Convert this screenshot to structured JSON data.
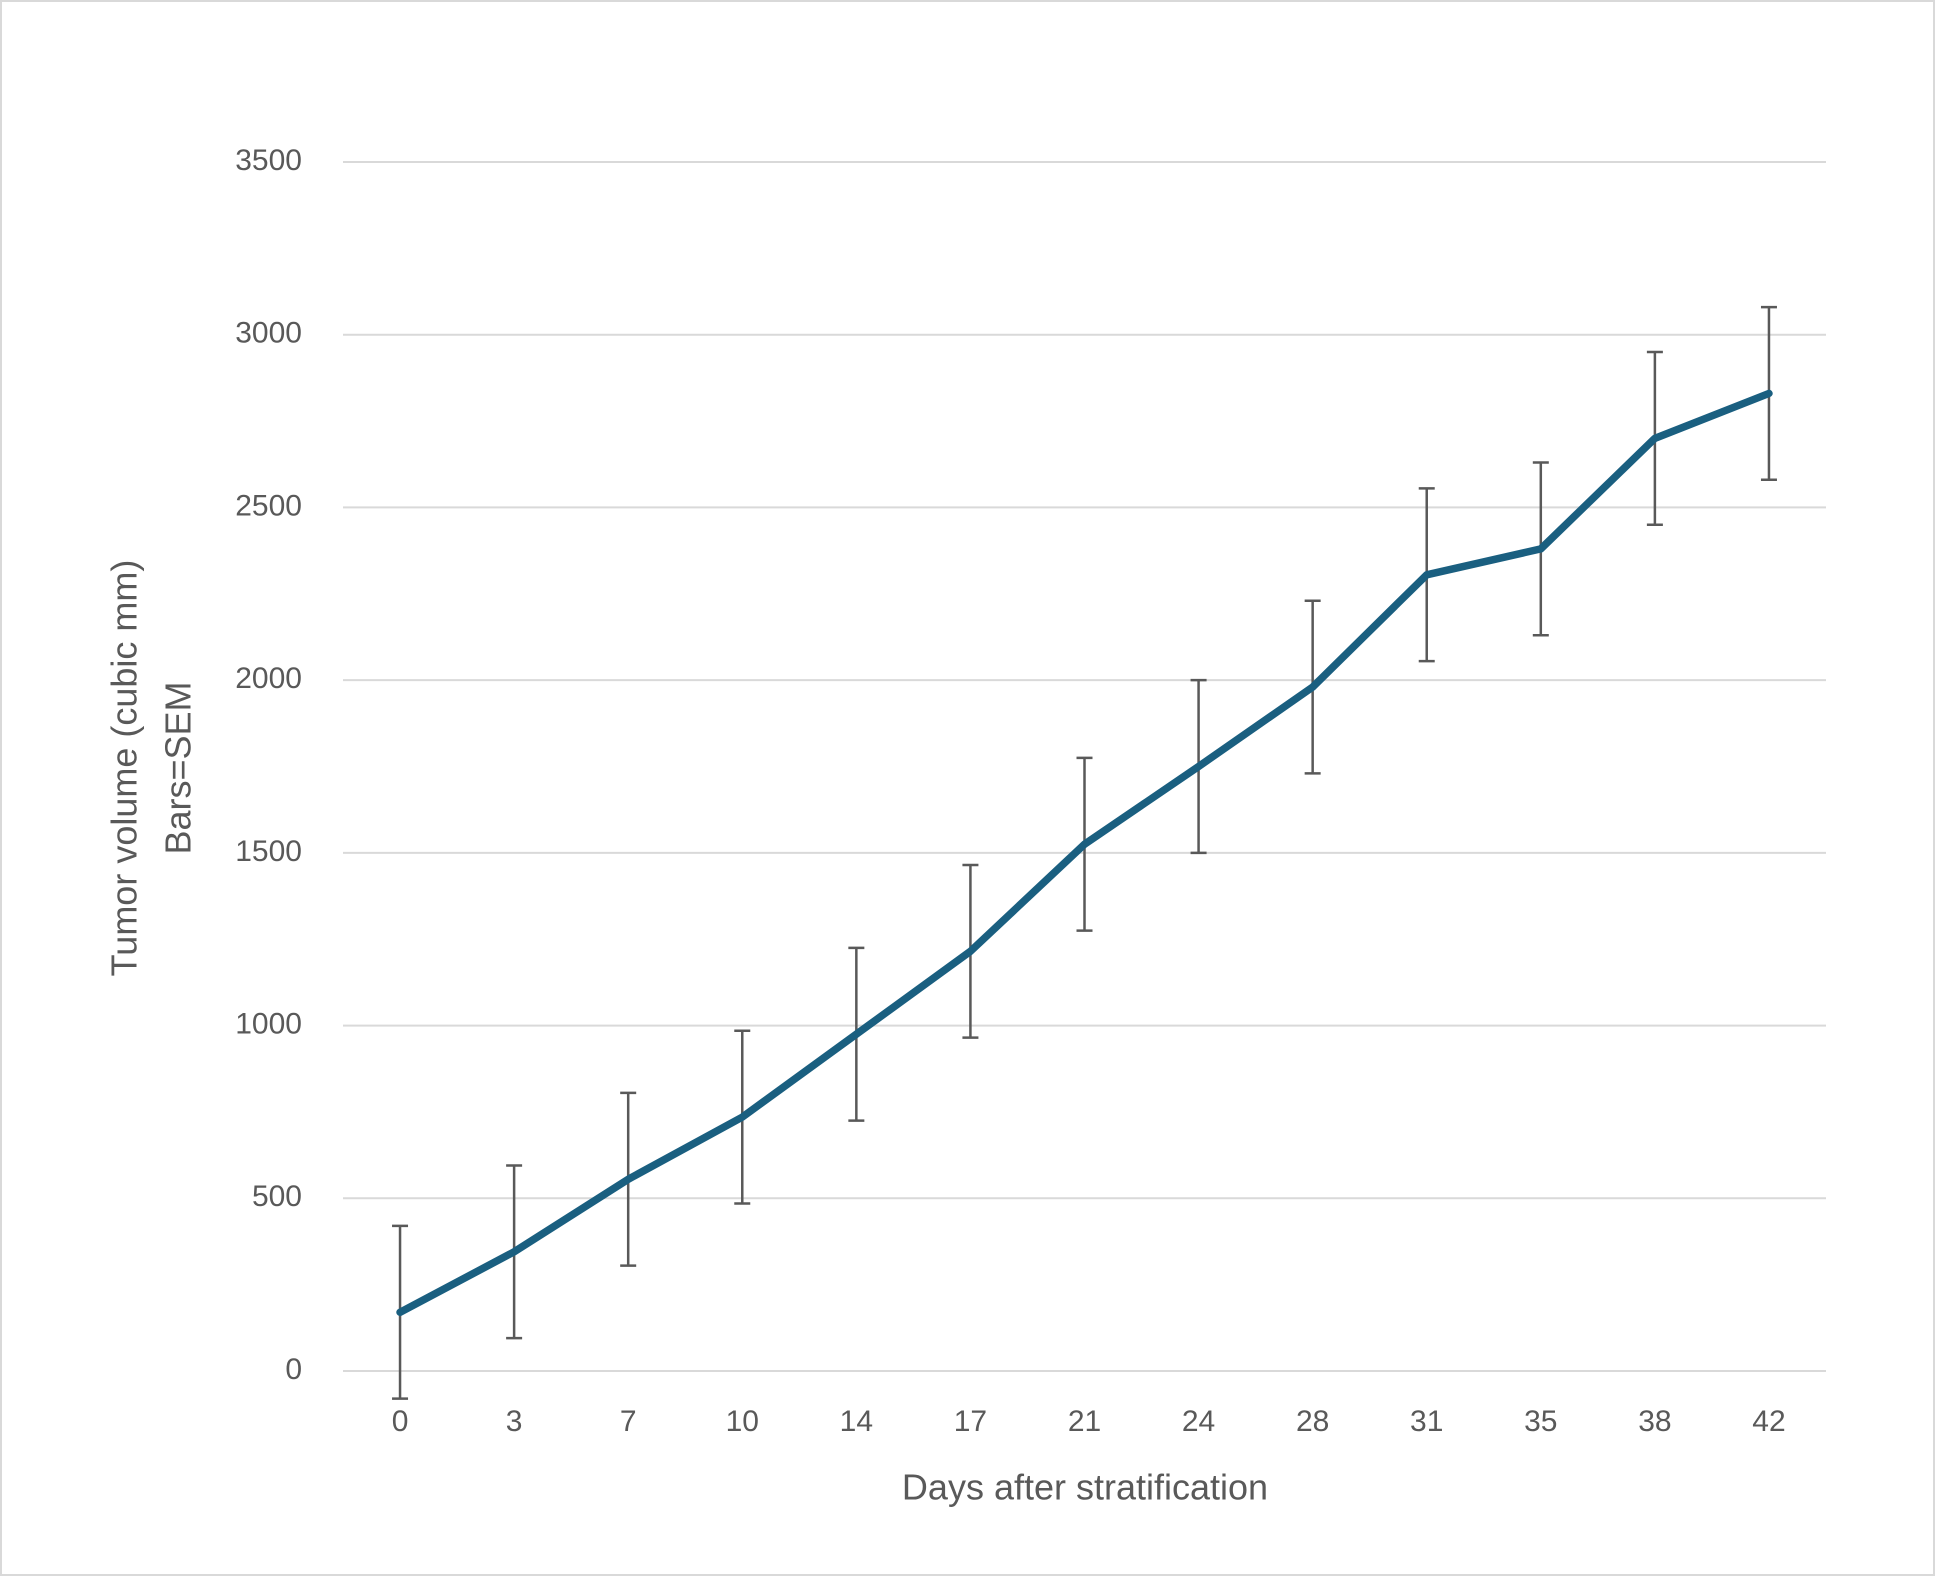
{
  "chart_data": {
    "type": "line",
    "x_label": "Days after stratification",
    "y_label": [
      "Tumor volume (cubic mm)",
      "Bars=SEM"
    ],
    "categories": [
      "0",
      "3",
      "7",
      "10",
      "14",
      "17",
      "21",
      "24",
      "28",
      "31",
      "35",
      "38",
      "42"
    ],
    "values": [
      170,
      345,
      555,
      735,
      975,
      1215,
      1525,
      1750,
      1980,
      2305,
      2380,
      2700,
      2830
    ],
    "errors": [
      250,
      250,
      250,
      250,
      250,
      250,
      250,
      250,
      250,
      250,
      250,
      250,
      250
    ],
    "color": "#1a5f80",
    "error_color": "#595959",
    "ylim": [
      0,
      3500
    ],
    "yticks": [
      0,
      500,
      1000,
      1500,
      2000,
      2500,
      3000,
      3500
    ],
    "grid": true
  }
}
